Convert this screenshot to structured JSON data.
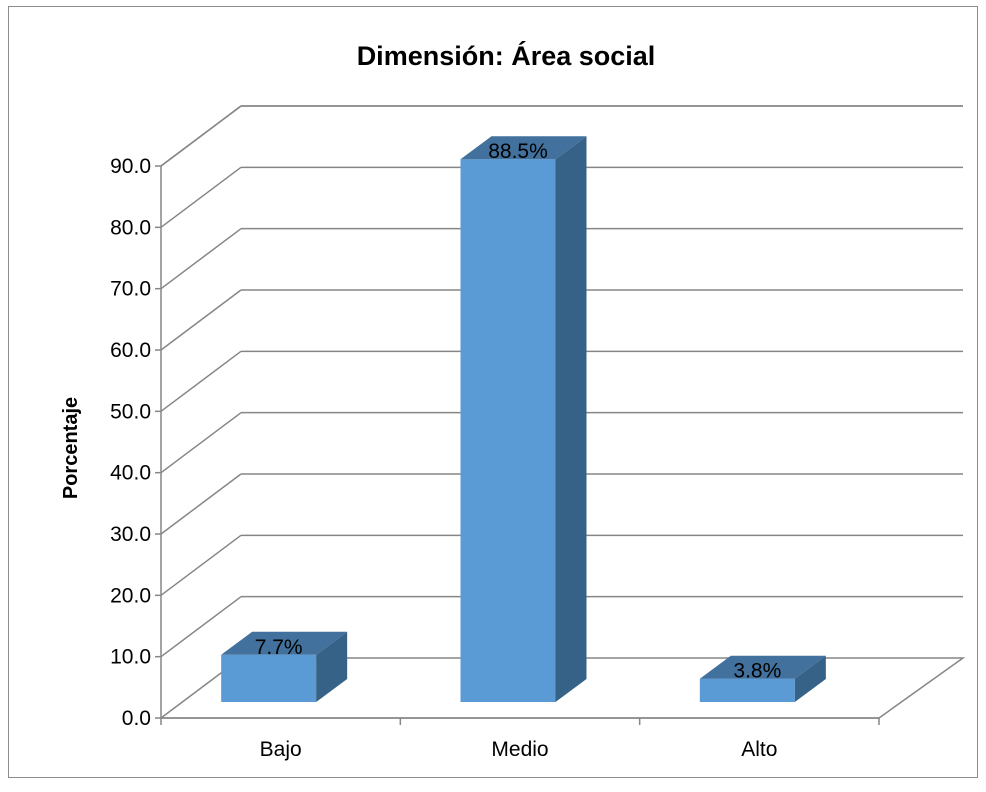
{
  "chart_data": {
    "type": "bar",
    "style": "3d-column",
    "title": "Dimensión: Área social",
    "ylabel": "Porcentaje",
    "xlabel": "",
    "categories": [
      "Bajo",
      "Medio",
      "Alto"
    ],
    "values": [
      7.7,
      88.5,
      3.8
    ],
    "data_labels": [
      "7.7%",
      "88.5%",
      "3.8%"
    ],
    "ylim": [
      0,
      90
    ],
    "yticks": [
      "0.0",
      "10.0",
      "20.0",
      "30.0",
      "40.0",
      "50.0",
      "60.0",
      "70.0",
      "80.0",
      "90.0"
    ],
    "grid": true,
    "legend": "none",
    "colors": {
      "bar_front": "#5b9bd5",
      "bar_top": "#41719c",
      "bar_side": "#376288",
      "grid": "#868686"
    }
  }
}
